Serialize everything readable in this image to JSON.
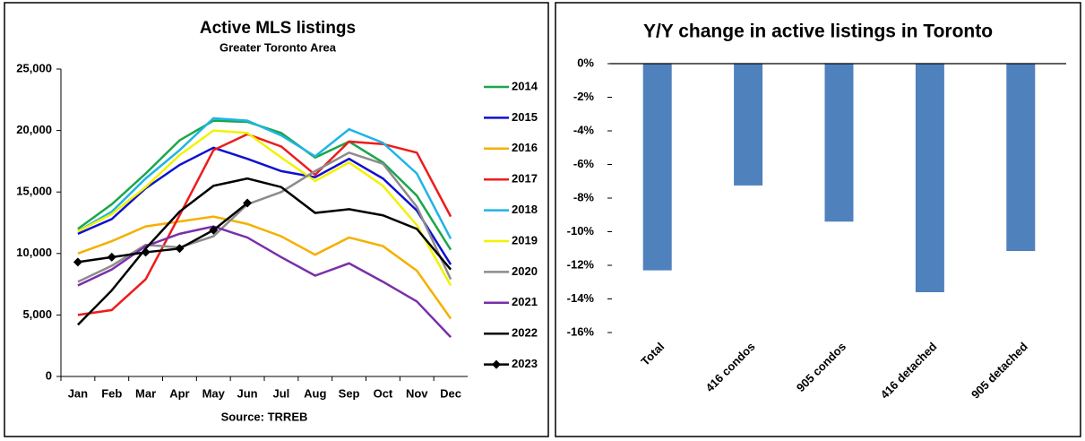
{
  "chart_data": [
    {
      "type": "line",
      "title": "Active MLS listings",
      "subtitle": "Greater Toronto Area",
      "x_label": "Source: TRREB",
      "categories": [
        "Jan",
        "Feb",
        "Mar",
        "Apr",
        "May",
        "Jun",
        "Jul",
        "Aug",
        "Sep",
        "Oct",
        "Nov",
        "Dec"
      ],
      "ylim": [
        0,
        25000
      ],
      "yticks": [
        0,
        {
          "value": 5000,
          "label": "5,000"
        },
        {
          "value": 10000,
          "label": "10,000"
        },
        {
          "value": 15000,
          "label": "15,000"
        },
        {
          "value": 20000,
          "label": "20,000"
        },
        {
          "value": 25000,
          "label": "25,000"
        }
      ],
      "grid": false,
      "legend": "right",
      "series": [
        {
          "name": "2014",
          "color": "#1aa64a",
          "values": [
            12000,
            14000,
            16500,
            19200,
            20800,
            20700,
            19800,
            17800,
            19100,
            17400,
            14700,
            10300
          ]
        },
        {
          "name": "2015",
          "color": "#1010d0",
          "values": [
            11600,
            12800,
            15300,
            17200,
            18600,
            17700,
            16700,
            16200,
            17700,
            16100,
            13500,
            9100
          ]
        },
        {
          "name": "2016",
          "color": "#f5b000",
          "values": [
            10000,
            11000,
            12200,
            12600,
            13000,
            12400,
            11400,
            9900,
            11300,
            10600,
            8600,
            4700
          ]
        },
        {
          "name": "2017",
          "color": "#ee1c1c",
          "values": [
            5000,
            5400,
            7900,
            13100,
            18400,
            19700,
            18700,
            16400,
            19100,
            18900,
            18200,
            13000
          ]
        },
        {
          "name": "2018",
          "color": "#1fb4e6",
          "values": [
            11800,
            13400,
            16100,
            18400,
            21000,
            20800,
            19600,
            17900,
            20100,
            19000,
            16500,
            11200
          ]
        },
        {
          "name": "2019",
          "color": "#f2f200",
          "values": [
            11800,
            13200,
            15400,
            18000,
            20000,
            19800,
            17800,
            15900,
            17400,
            15500,
            12300,
            7400
          ]
        },
        {
          "name": "2020",
          "color": "#8c8c8c",
          "values": [
            7700,
            9000,
            10700,
            10500,
            11400,
            14000,
            15000,
            16700,
            18200,
            17300,
            13800,
            7900
          ]
        },
        {
          "name": "2021",
          "color": "#7a2fa8",
          "values": [
            7400,
            8700,
            10600,
            11600,
            12200,
            11300,
            9700,
            8200,
            9200,
            7700,
            6100,
            3200
          ]
        },
        {
          "name": "2022",
          "color": "#000000",
          "values": [
            4200,
            7000,
            10400,
            13400,
            15500,
            16100,
            15400,
            13300,
            13600,
            13100,
            12000,
            8700
          ]
        },
        {
          "name": "2023",
          "color": "#000000",
          "marker": "diamond",
          "values": [
            9300,
            9700,
            10100,
            10400,
            11900,
            14100,
            null,
            null,
            null,
            null,
            null,
            null
          ]
        }
      ]
    },
    {
      "type": "bar",
      "title": "Y/Y change in active listings in Toronto",
      "categories": [
        "Total",
        "416 condos",
        "905 condos",
        "416 detached",
        "905 detached"
      ],
      "values": [
        -12.3,
        -7.25,
        -9.4,
        -13.6,
        -11.15
      ],
      "color": "#4f81bd",
      "ylim": [
        -16,
        0
      ],
      "yticks": [
        {
          "value": 0,
          "label": "0%"
        },
        {
          "value": -2,
          "label": "-2%"
        },
        {
          "value": -4,
          "label": "-4%"
        },
        {
          "value": -6,
          "label": "-6%"
        },
        {
          "value": -8,
          "label": "-8%"
        },
        {
          "value": -10,
          "label": "-10%"
        },
        {
          "value": -12,
          "label": "-12%"
        },
        {
          "value": -14,
          "label": "-14%"
        },
        {
          "value": -16,
          "label": "-16%"
        }
      ],
      "grid": false
    }
  ]
}
